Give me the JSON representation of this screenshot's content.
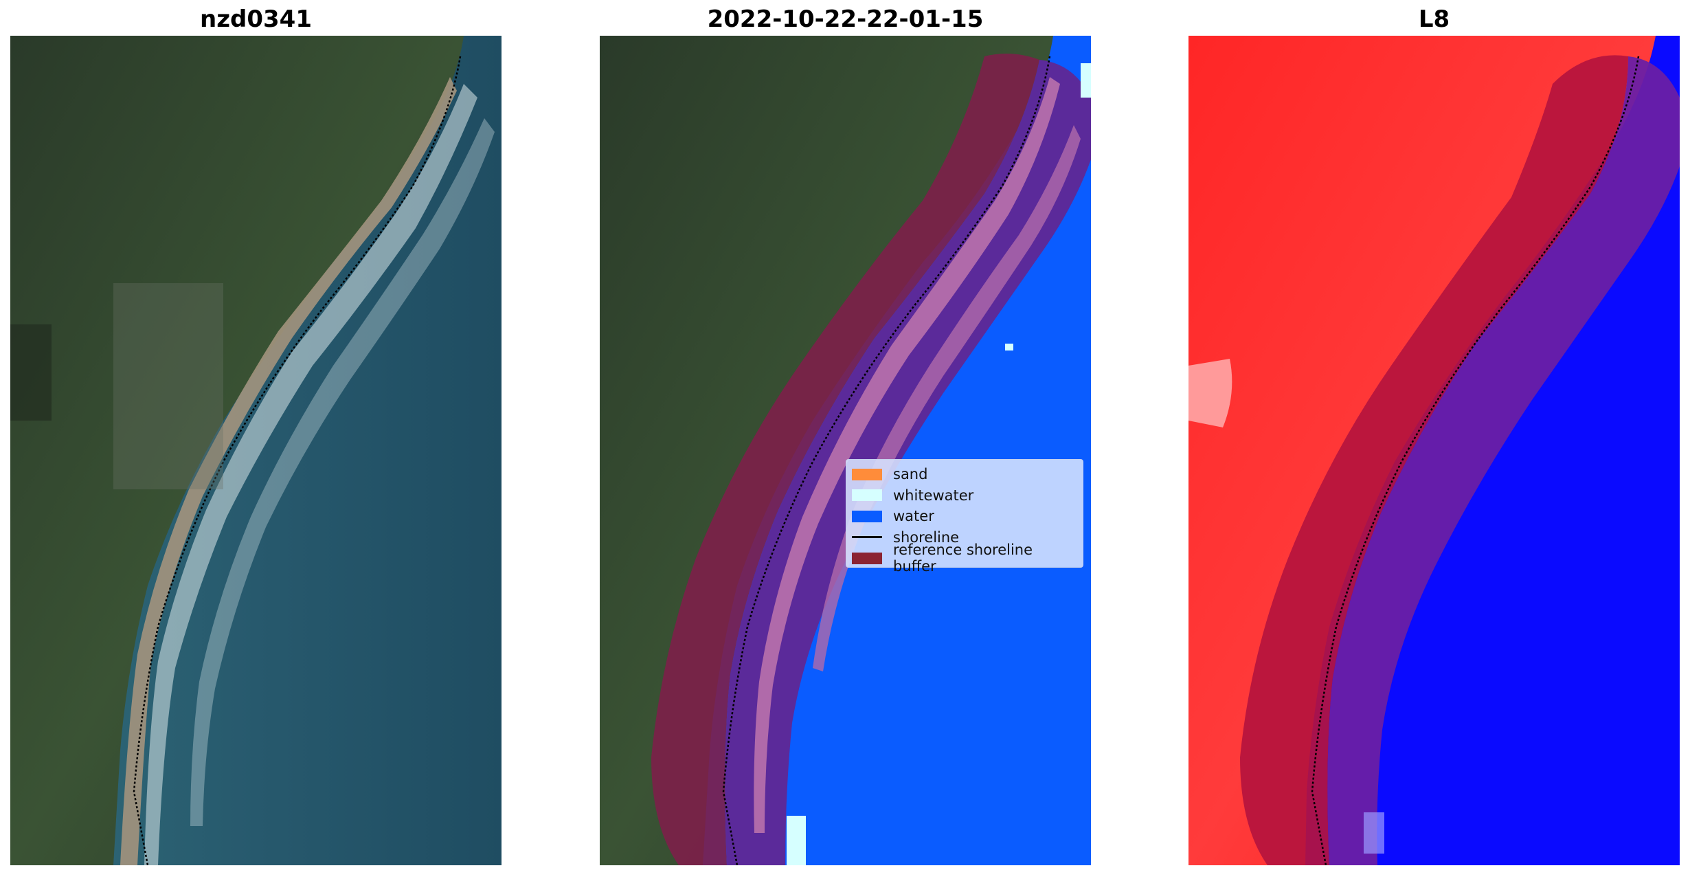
{
  "panels": [
    {
      "title": "nzd0341"
    },
    {
      "title": "2022-10-22-22-01-15"
    },
    {
      "title": "L8"
    }
  ],
  "legend": {
    "items": [
      {
        "label": "sand",
        "color": "#ff8c3a",
        "kind": "patch"
      },
      {
        "label": "whitewater",
        "color": "#d6ffff",
        "kind": "patch"
      },
      {
        "label": "water",
        "color": "#0a5cff",
        "kind": "patch"
      },
      {
        "label": "shoreline",
        "color": "#000000",
        "kind": "line"
      },
      {
        "label": "reference shoreline buffer",
        "color": "#8b2332",
        "kind": "patch"
      }
    ]
  },
  "colors": {
    "land_dark": "#2c3b2a",
    "land_green": "#3a5535",
    "sand": "#a79a86",
    "ocean": "#25586a",
    "ocean_deep": "#1f4d62",
    "surf": "#d9e6ea",
    "class_water": "#0a5cff",
    "buffer_land": "#7d1f49",
    "buffer_water": "#5b2a9a",
    "buffer_band": "#b06aaa",
    "index_land": "#ff1a1a",
    "index_water": "#0000ff",
    "index_buffer_land": "#b5143e",
    "index_buffer_water": "#6a1fa5"
  }
}
